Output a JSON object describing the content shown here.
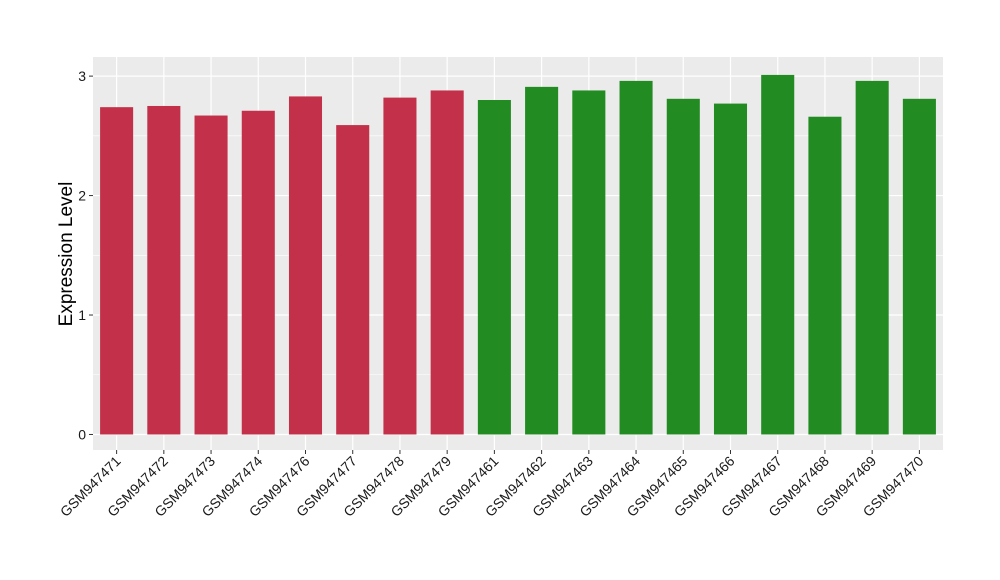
{
  "chart_data": {
    "type": "bar",
    "ylabel": "Expression Level",
    "xlabel": "",
    "title": "",
    "ylim": [
      -0.13,
      3.16
    ],
    "yticks": [
      0,
      1,
      2,
      3
    ],
    "grid": true,
    "background": "#ebebeb",
    "gridline_color": "#ffffff",
    "categories": [
      "GSM947471",
      "GSM947472",
      "GSM947473",
      "GSM947474",
      "GSM947476",
      "GSM947477",
      "GSM947478",
      "GSM947479",
      "GSM947461",
      "GSM947462",
      "GSM947463",
      "GSM947464",
      "GSM947465",
      "GSM947466",
      "GSM947467",
      "GSM947468",
      "GSM947469",
      "GSM947470"
    ],
    "values": [
      2.74,
      2.75,
      2.67,
      2.71,
      2.83,
      2.59,
      2.82,
      2.88,
      2.8,
      2.91,
      2.88,
      2.96,
      2.81,
      2.77,
      3.01,
      2.66,
      2.96,
      2.81
    ],
    "bar_colors": [
      "#c3304a",
      "#c3304a",
      "#c3304a",
      "#c3304a",
      "#c3304a",
      "#c3304a",
      "#c3304a",
      "#c3304a",
      "#228b22",
      "#228b22",
      "#228b22",
      "#228b22",
      "#228b22",
      "#228b22",
      "#228b22",
      "#228b22",
      "#228b22",
      "#228b22"
    ]
  }
}
